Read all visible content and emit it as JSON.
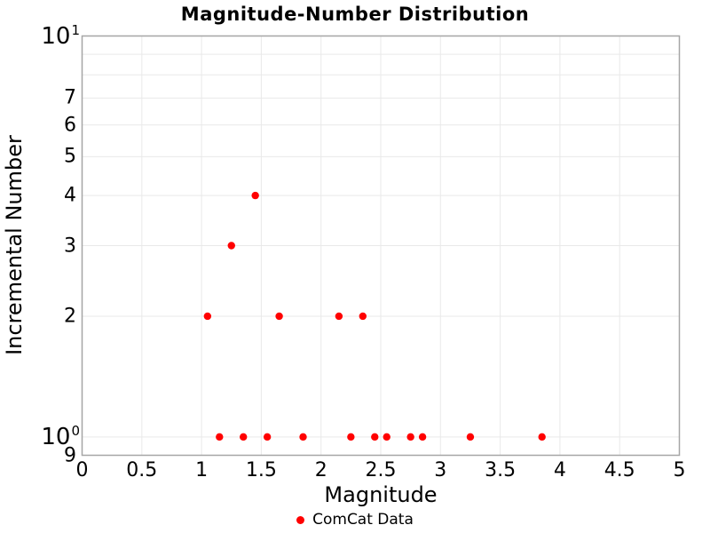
{
  "figure": {
    "title": "Magnitude-Number Distribution",
    "xlabel": "Magnitude",
    "ylabel": "Incremental Number"
  },
  "legend": {
    "items": [
      {
        "label": "ComCat Data",
        "marker": "circle",
        "color": "#ff0000"
      }
    ],
    "position": "bottom-center"
  },
  "colors": {
    "marker": "#ff0000",
    "gridline": "#e9e9e9",
    "spine": "#a6a6a6",
    "text": "#000000",
    "background": "#ffffff"
  },
  "chart_data": {
    "type": "scatter",
    "title": "Magnitude-Number Distribution",
    "xlabel": "Magnitude",
    "ylabel": "Incremental Number",
    "xscale": "linear",
    "yscale": "log",
    "xlim": [
      0,
      5
    ],
    "ylim": [
      0.9,
      10
    ],
    "grid": true,
    "legend_position": "bottom-center",
    "series": [
      {
        "name": "ComCat Data",
        "marker": "circle",
        "color": "#ff0000",
        "marker_radius_px": 4.2,
        "points": [
          {
            "x": 1.05,
            "y": 2
          },
          {
            "x": 1.15,
            "y": 1
          },
          {
            "x": 1.25,
            "y": 3
          },
          {
            "x": 1.35,
            "y": 1
          },
          {
            "x": 1.45,
            "y": 4
          },
          {
            "x": 1.55,
            "y": 1
          },
          {
            "x": 1.65,
            "y": 2
          },
          {
            "x": 1.85,
            "y": 1
          },
          {
            "x": 2.15,
            "y": 2
          },
          {
            "x": 2.25,
            "y": 1
          },
          {
            "x": 2.35,
            "y": 2
          },
          {
            "x": 2.45,
            "y": 1
          },
          {
            "x": 2.55,
            "y": 1
          },
          {
            "x": 2.75,
            "y": 1
          },
          {
            "x": 2.85,
            "y": 1
          },
          {
            "x": 3.25,
            "y": 1
          },
          {
            "x": 3.85,
            "y": 1
          }
        ]
      }
    ],
    "x_ticks": [
      {
        "value": 0,
        "label": "0"
      },
      {
        "value": 0.5,
        "label": "0.5"
      },
      {
        "value": 1,
        "label": "1"
      },
      {
        "value": 1.5,
        "label": "1.5"
      },
      {
        "value": 2,
        "label": "2"
      },
      {
        "value": 2.5,
        "label": "2.5"
      },
      {
        "value": 3,
        "label": "3"
      },
      {
        "value": 3.5,
        "label": "3.5"
      },
      {
        "value": 4,
        "label": "4"
      },
      {
        "value": 4.5,
        "label": "4.5"
      },
      {
        "value": 5,
        "label": "5"
      }
    ],
    "y_ticks": [
      {
        "value": 10,
        "base": "10",
        "exp": "1",
        "major": true
      },
      {
        "value": 7,
        "label": "7"
      },
      {
        "value": 6,
        "label": "6"
      },
      {
        "value": 5,
        "label": "5"
      },
      {
        "value": 4,
        "label": "4"
      },
      {
        "value": 3,
        "label": "3"
      },
      {
        "value": 2,
        "label": "2"
      },
      {
        "value": 1,
        "base": "10",
        "exp": "0",
        "major": true
      },
      {
        "value": 0.9,
        "label": "9"
      }
    ],
    "x_gridlines": [
      0,
      0.5,
      1,
      1.5,
      2,
      2.5,
      3,
      3.5,
      4,
      4.5,
      5
    ],
    "y_gridlines": [
      0.9,
      1,
      2,
      3,
      4,
      5,
      6,
      7,
      8,
      9,
      10
    ]
  }
}
